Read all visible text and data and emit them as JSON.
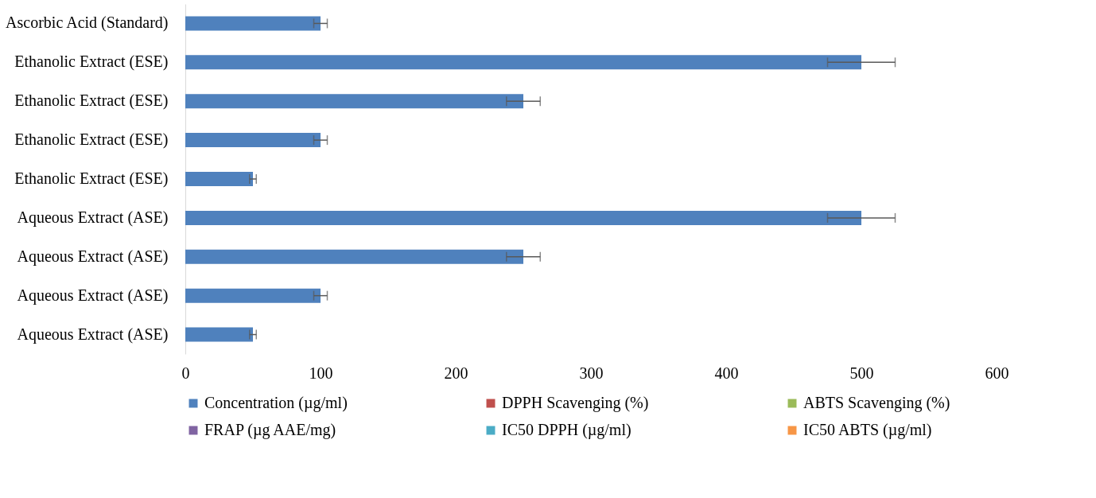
{
  "chart_data": {
    "type": "bar",
    "orientation": "horizontal",
    "categories": [
      "Ascorbic Acid (Standard)",
      "Ethanolic Extract (ESE)",
      "Ethanolic Extract (ESE)",
      "Ethanolic Extract (ESE)",
      "Ethanolic Extract (ESE)",
      "Aqueous Extract (ASE)",
      "Aqueous Extract (ASE)",
      "Aqueous Extract (ASE)",
      "Aqueous Extract (ASE)"
    ],
    "series": [
      {
        "name": "Concentration (µg/ml)",
        "color": "#4f81bd",
        "values": [
          100,
          500,
          250,
          100,
          50,
          500,
          250,
          100,
          50
        ],
        "errors": [
          5,
          25,
          12.5,
          5,
          2.5,
          25,
          12.5,
          5,
          2.5
        ]
      },
      {
        "name": "DPPH Scavenging (%)",
        "color": "#c0504d",
        "values": [
          null,
          null,
          null,
          null,
          null,
          null,
          null,
          null,
          null
        ]
      },
      {
        "name": "ABTS Scavenging (%)",
        "color": "#9bbb59",
        "values": [
          null,
          null,
          null,
          null,
          null,
          null,
          null,
          null,
          null
        ]
      },
      {
        "name": "FRAP (µg AAE/mg)",
        "color": "#8064a2",
        "values": [
          null,
          null,
          null,
          null,
          null,
          null,
          null,
          null,
          null
        ]
      },
      {
        "name": "IC50 DPPH (µg/ml)",
        "color": "#4bacc6",
        "values": [
          null,
          null,
          null,
          null,
          null,
          null,
          null,
          null,
          null
        ]
      },
      {
        "name": "IC50 ABTS (µg/ml)",
        "color": "#f79646",
        "values": [
          null,
          null,
          null,
          null,
          null,
          null,
          null,
          null,
          null
        ]
      }
    ],
    "xlim": [
      0,
      600
    ],
    "xticks": [
      0,
      100,
      200,
      300,
      400,
      500,
      600
    ],
    "grid": false,
    "legend": "bottom"
  }
}
